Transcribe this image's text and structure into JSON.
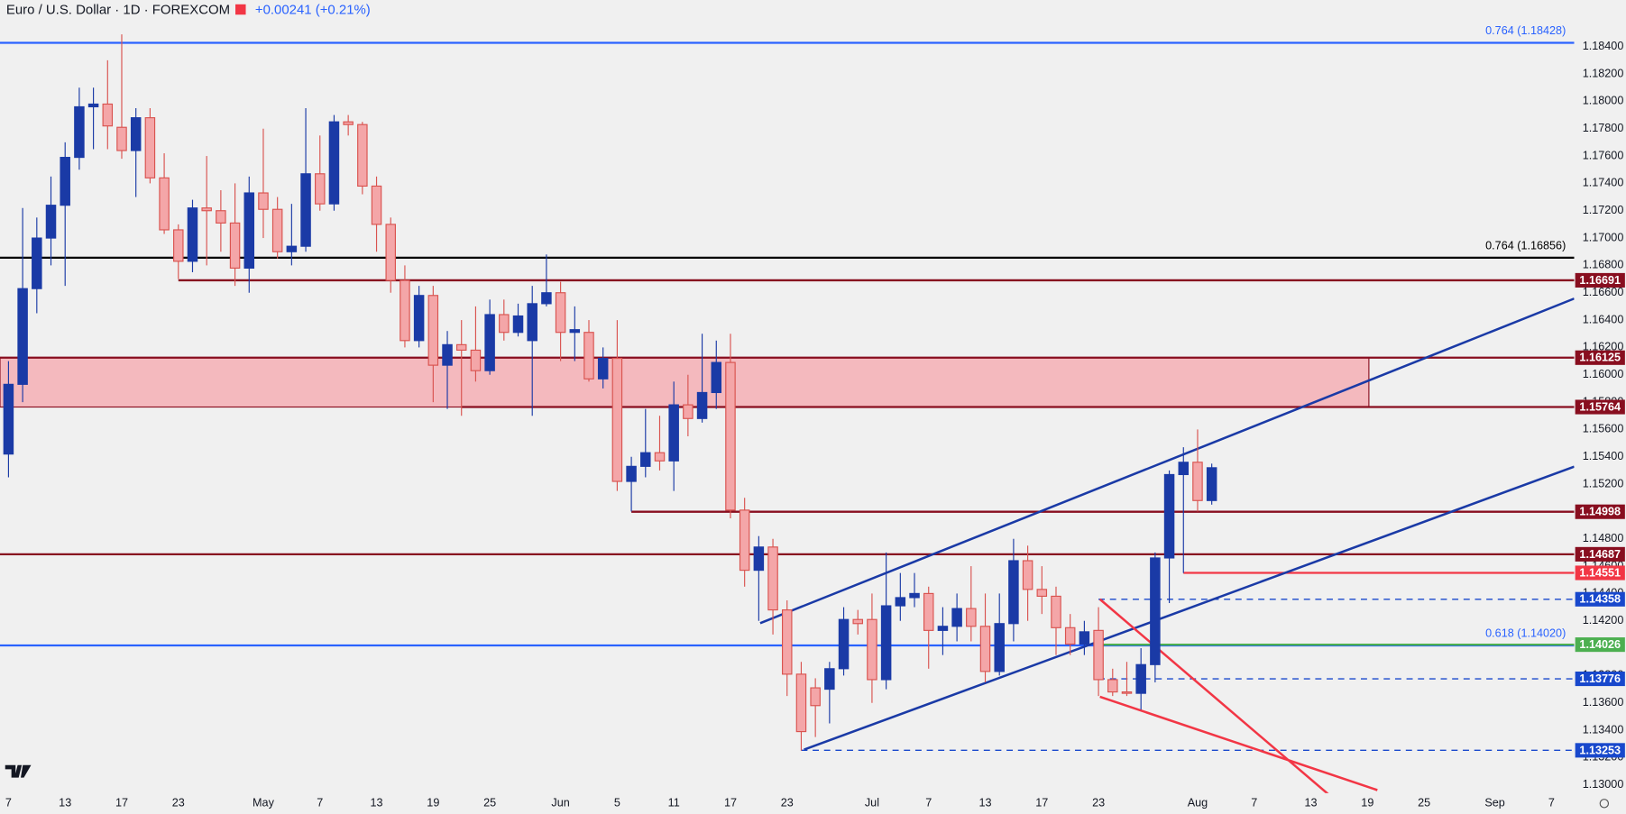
{
  "header": {
    "symbol": "Euro / U.S. Dollar · 1D · FOREXCOM",
    "change": "+0.00241 (+0.21%)"
  },
  "chart_data": {
    "type": "candlestick",
    "up_color": "#1a3aa6",
    "down_color": "#f4a6a8",
    "down_border": "#d9534f",
    "ylim": [
      1.1294,
      1.1874
    ],
    "xlim": [
      -0.6,
      110.6
    ],
    "yticks": [
      {
        "value": 1.184,
        "label": "1.18400"
      },
      {
        "value": 1.182,
        "label": "1.18200"
      },
      {
        "value": 1.18,
        "label": "1.18000"
      },
      {
        "value": 1.178,
        "label": "1.17800"
      },
      {
        "value": 1.176,
        "label": "1.17600"
      },
      {
        "value": 1.174,
        "label": "1.17400"
      },
      {
        "value": 1.172,
        "label": "1.17200"
      },
      {
        "value": 1.17,
        "label": "1.17000"
      },
      {
        "value": 1.168,
        "label": "1.16800"
      },
      {
        "value": 1.166,
        "label": "1.16600"
      },
      {
        "value": 1.164,
        "label": "1.16400"
      },
      {
        "value": 1.162,
        "label": "1.16200"
      },
      {
        "value": 1.16,
        "label": "1.16000"
      },
      {
        "value": 1.158,
        "label": "1.15800"
      },
      {
        "value": 1.156,
        "label": "1.15600"
      },
      {
        "value": 1.154,
        "label": "1.15400"
      },
      {
        "value": 1.152,
        "label": "1.15200"
      },
      {
        "value": 1.15,
        "label": "1.15000"
      },
      {
        "value": 1.148,
        "label": "1.14800"
      },
      {
        "value": 1.146,
        "label": "1.14600"
      },
      {
        "value": 1.144,
        "label": "1.14400"
      },
      {
        "value": 1.142,
        "label": "1.14200"
      },
      {
        "value": 1.14,
        "label": "1.14000"
      },
      {
        "value": 1.138,
        "label": "1.13800"
      },
      {
        "value": 1.136,
        "label": "1.13600"
      },
      {
        "value": 1.134,
        "label": "1.13400"
      },
      {
        "value": 1.132,
        "label": "1.13200"
      },
      {
        "value": 1.13,
        "label": "1.13000"
      }
    ],
    "xticks": [
      {
        "value": 0,
        "label": "7"
      },
      {
        "value": 4,
        "label": "13"
      },
      {
        "value": 8,
        "label": "17"
      },
      {
        "value": 12,
        "label": "23"
      },
      {
        "value": 18,
        "label": "May"
      },
      {
        "value": 22,
        "label": "7"
      },
      {
        "value": 26,
        "label": "13"
      },
      {
        "value": 30,
        "label": "19"
      },
      {
        "value": 34,
        "label": "25"
      },
      {
        "value": 39,
        "label": "Jun"
      },
      {
        "value": 43,
        "label": "5"
      },
      {
        "value": 47,
        "label": "11"
      },
      {
        "value": 51,
        "label": "17"
      },
      {
        "value": 55,
        "label": "23"
      },
      {
        "value": 61,
        "label": "Jul"
      },
      {
        "value": 65,
        "label": "7"
      },
      {
        "value": 69,
        "label": "13"
      },
      {
        "value": 73,
        "label": "17"
      },
      {
        "value": 77,
        "label": "23"
      },
      {
        "value": 84,
        "label": "Aug"
      },
      {
        "value": 88,
        "label": "7"
      },
      {
        "value": 92,
        "label": "13"
      },
      {
        "value": 96,
        "label": "19"
      },
      {
        "value": 100,
        "label": "25"
      },
      {
        "value": 105,
        "label": "Sep"
      },
      {
        "value": 109,
        "label": "7"
      }
    ],
    "candles": [
      {
        "o": 1.1542,
        "h": 1.161,
        "l": 1.1525,
        "c": 1.1593
      },
      {
        "o": 1.1593,
        "h": 1.1722,
        "l": 1.158,
        "c": 1.1663
      },
      {
        "o": 1.1663,
        "h": 1.1715,
        "l": 1.1645,
        "c": 1.17
      },
      {
        "o": 1.17,
        "h": 1.1745,
        "l": 1.168,
        "c": 1.1724
      },
      {
        "o": 1.1724,
        "h": 1.177,
        "l": 1.1665,
        "c": 1.1759
      },
      {
        "o": 1.1759,
        "h": 1.181,
        "l": 1.175,
        "c": 1.1796
      },
      {
        "o": 1.1796,
        "h": 1.181,
        "l": 1.1765,
        "c": 1.1798
      },
      {
        "o": 1.1798,
        "h": 1.183,
        "l": 1.1765,
        "c": 1.1782
      },
      {
        "o": 1.1781,
        "h": 1.1849,
        "l": 1.1758,
        "c": 1.1764
      },
      {
        "o": 1.1764,
        "h": 1.1795,
        "l": 1.173,
        "c": 1.1788
      },
      {
        "o": 1.1788,
        "h": 1.1795,
        "l": 1.174,
        "c": 1.1744
      },
      {
        "o": 1.1744,
        "h": 1.1762,
        "l": 1.1703,
        "c": 1.1706
      },
      {
        "o": 1.1706,
        "h": 1.171,
        "l": 1.167,
        "c": 1.1683
      },
      {
        "o": 1.1683,
        "h": 1.1728,
        "l": 1.1675,
        "c": 1.1722
      },
      {
        "o": 1.1722,
        "h": 1.176,
        "l": 1.168,
        "c": 1.172
      },
      {
        "o": 1.172,
        "h": 1.1735,
        "l": 1.169,
        "c": 1.1711
      },
      {
        "o": 1.1711,
        "h": 1.174,
        "l": 1.1665,
        "c": 1.1678
      },
      {
        "o": 1.1678,
        "h": 1.1745,
        "l": 1.166,
        "c": 1.1733
      },
      {
        "o": 1.1733,
        "h": 1.178,
        "l": 1.17,
        "c": 1.1721
      },
      {
        "o": 1.1721,
        "h": 1.173,
        "l": 1.1685,
        "c": 1.169
      },
      {
        "o": 1.169,
        "h": 1.1725,
        "l": 1.168,
        "c": 1.1694
      },
      {
        "o": 1.1694,
        "h": 1.1795,
        "l": 1.169,
        "c": 1.1747
      },
      {
        "o": 1.1747,
        "h": 1.1775,
        "l": 1.172,
        "c": 1.1725
      },
      {
        "o": 1.1725,
        "h": 1.179,
        "l": 1.172,
        "c": 1.1785
      },
      {
        "o": 1.1785,
        "h": 1.179,
        "l": 1.1775,
        "c": 1.1783
      },
      {
        "o": 1.1783,
        "h": 1.1785,
        "l": 1.1732,
        "c": 1.1738
      },
      {
        "o": 1.1738,
        "h": 1.1745,
        "l": 1.169,
        "c": 1.171
      },
      {
        "o": 1.171,
        "h": 1.1715,
        "l": 1.166,
        "c": 1.1669
      },
      {
        "o": 1.1669,
        "h": 1.168,
        "l": 1.162,
        "c": 1.1625
      },
      {
        "o": 1.1625,
        "h": 1.1665,
        "l": 1.162,
        "c": 1.1658
      },
      {
        "o": 1.1658,
        "h": 1.1665,
        "l": 1.158,
        "c": 1.1607
      },
      {
        "o": 1.1607,
        "h": 1.1632,
        "l": 1.1575,
        "c": 1.1622
      },
      {
        "o": 1.1622,
        "h": 1.164,
        "l": 1.157,
        "c": 1.1618
      },
      {
        "o": 1.1618,
        "h": 1.165,
        "l": 1.1595,
        "c": 1.1603
      },
      {
        "o": 1.1603,
        "h": 1.1655,
        "l": 1.16,
        "c": 1.1644
      },
      {
        "o": 1.1644,
        "h": 1.1655,
        "l": 1.1625,
        "c": 1.1631
      },
      {
        "o": 1.1631,
        "h": 1.1652,
        "l": 1.1628,
        "c": 1.1643
      },
      {
        "o": 1.1625,
        "h": 1.1665,
        "l": 1.157,
        "c": 1.1652
      },
      {
        "o": 1.1652,
        "h": 1.1688,
        "l": 1.165,
        "c": 1.166
      },
      {
        "o": 1.166,
        "h": 1.1668,
        "l": 1.161,
        "c": 1.1631
      },
      {
        "o": 1.1631,
        "h": 1.165,
        "l": 1.161,
        "c": 1.1633
      },
      {
        "o": 1.1631,
        "h": 1.164,
        "l": 1.1595,
        "c": 1.1597
      },
      {
        "o": 1.1597,
        "h": 1.162,
        "l": 1.159,
        "c": 1.1612
      },
      {
        "o": 1.1612,
        "h": 1.164,
        "l": 1.1515,
        "c": 1.1522
      },
      {
        "o": 1.1522,
        "h": 1.154,
        "l": 1.15,
        "c": 1.1533
      },
      {
        "o": 1.1533,
        "h": 1.1575,
        "l": 1.1525,
        "c": 1.1543
      },
      {
        "o": 1.1543,
        "h": 1.157,
        "l": 1.153,
        "c": 1.1537
      },
      {
        "o": 1.1537,
        "h": 1.1595,
        "l": 1.1515,
        "c": 1.1578
      },
      {
        "o": 1.1578,
        "h": 1.16,
        "l": 1.1555,
        "c": 1.1568
      },
      {
        "o": 1.1568,
        "h": 1.163,
        "l": 1.1565,
        "c": 1.1587
      },
      {
        "o": 1.1587,
        "h": 1.1625,
        "l": 1.1575,
        "c": 1.1609
      },
      {
        "o": 1.1609,
        "h": 1.163,
        "l": 1.1495,
        "c": 1.1501
      },
      {
        "o": 1.1501,
        "h": 1.151,
        "l": 1.1445,
        "c": 1.1457
      },
      {
        "o": 1.1457,
        "h": 1.1482,
        "l": 1.142,
        "c": 1.1474
      },
      {
        "o": 1.1474,
        "h": 1.148,
        "l": 1.141,
        "c": 1.1428
      },
      {
        "o": 1.1428,
        "h": 1.1435,
        "l": 1.1365,
        "c": 1.1381
      },
      {
        "o": 1.1381,
        "h": 1.139,
        "l": 1.1325,
        "c": 1.1339
      },
      {
        "o": 1.1371,
        "h": 1.1378,
        "l": 1.1335,
        "c": 1.1358
      },
      {
        "o": 1.137,
        "h": 1.139,
        "l": 1.1345,
        "c": 1.1385
      },
      {
        "o": 1.1385,
        "h": 1.143,
        "l": 1.138,
        "c": 1.1421
      },
      {
        "o": 1.1421,
        "h": 1.1428,
        "l": 1.141,
        "c": 1.1418
      },
      {
        "o": 1.1421,
        "h": 1.144,
        "l": 1.136,
        "c": 1.1377
      },
      {
        "o": 1.1377,
        "h": 1.147,
        "l": 1.137,
        "c": 1.1431
      },
      {
        "o": 1.1431,
        "h": 1.1455,
        "l": 1.142,
        "c": 1.1437
      },
      {
        "o": 1.1437,
        "h": 1.1455,
        "l": 1.143,
        "c": 1.144
      },
      {
        "o": 1.144,
        "h": 1.1445,
        "l": 1.1385,
        "c": 1.1413
      },
      {
        "o": 1.1413,
        "h": 1.143,
        "l": 1.1395,
        "c": 1.1416
      },
      {
        "o": 1.1416,
        "h": 1.144,
        "l": 1.1405,
        "c": 1.1429
      },
      {
        "o": 1.1429,
        "h": 1.146,
        "l": 1.1405,
        "c": 1.1416
      },
      {
        "o": 1.1416,
        "h": 1.144,
        "l": 1.1375,
        "c": 1.1383
      },
      {
        "o": 1.1383,
        "h": 1.144,
        "l": 1.138,
        "c": 1.1418
      },
      {
        "o": 1.1418,
        "h": 1.148,
        "l": 1.1405,
        "c": 1.1464
      },
      {
        "o": 1.1464,
        "h": 1.1475,
        "l": 1.142,
        "c": 1.1443
      },
      {
        "o": 1.1443,
        "h": 1.146,
        "l": 1.1425,
        "c": 1.1438
      },
      {
        "o": 1.1438,
        "h": 1.1445,
        "l": 1.1395,
        "c": 1.1415
      },
      {
        "o": 1.1415,
        "h": 1.1425,
        "l": 1.1395,
        "c": 1.1403
      },
      {
        "o": 1.1403,
        "h": 1.142,
        "l": 1.1395,
        "c": 1.1412
      },
      {
        "o": 1.1413,
        "h": 1.143,
        "l": 1.1365,
        "c": 1.1377
      },
      {
        "o": 1.1377,
        "h": 1.1385,
        "l": 1.1365,
        "c": 1.1368
      },
      {
        "o": 1.1368,
        "h": 1.139,
        "l": 1.1365,
        "c": 1.1367
      },
      {
        "o": 1.1367,
        "h": 1.14,
        "l": 1.1355,
        "c": 1.1388
      },
      {
        "o": 1.1388,
        "h": 1.147,
        "l": 1.1375,
        "c": 1.1466
      },
      {
        "o": 1.1466,
        "h": 1.153,
        "l": 1.1433,
        "c": 1.1527
      },
      {
        "o": 1.1527,
        "h": 1.1547,
        "l": 1.1455,
        "c": 1.1536
      },
      {
        "o": 1.1536,
        "h": 1.156,
        "l": 1.15,
        "c": 1.1508
      },
      {
        "o": 1.1508,
        "h": 1.1535,
        "l": 1.1505,
        "c": 1.1532
      }
    ],
    "zone": {
      "top": 1.16125,
      "bottom": 1.15764,
      "end": 96.1,
      "color": "#f4b3b8"
    },
    "fib_lines": [
      {
        "price": 1.18428,
        "label": "0.764 (1.18428)",
        "color": "#2962ff"
      },
      {
        "price": 1.16856,
        "label": "0.764 (1.16856)",
        "color": "#000000"
      },
      {
        "price": 1.1402,
        "label": "0.618 (1.14020)",
        "color": "#2962ff"
      }
    ],
    "levels": [
      {
        "price": 1.16691,
        "start": 12,
        "color": "#880e1f",
        "dashed": false
      },
      {
        "price": 1.16125,
        "start": -0.6,
        "color": "#880e1f",
        "dashed": false
      },
      {
        "price": 1.15764,
        "start": 32,
        "color": "#880e1f",
        "dashed": false
      },
      {
        "price": 1.14998,
        "start": 44,
        "color": "#880e1f",
        "dashed": false
      },
      {
        "price": 1.14687,
        "start": -0.6,
        "color": "#880e1f",
        "dashed": false
      },
      {
        "price": 1.14551,
        "start": 83,
        "color": "#f23645",
        "dashed": false
      },
      {
        "price": 1.14358,
        "start": 77,
        "color": "#1848cc",
        "dashed": true
      },
      {
        "price": 1.14026,
        "start": 77,
        "color": "#4caf50",
        "dashed": false
      },
      {
        "price": 1.13776,
        "start": 77,
        "color": "#1848cc",
        "dashed": true
      },
      {
        "price": 1.13253,
        "start": 56,
        "color": "#1848cc",
        "dashed": true
      }
    ],
    "trendlines": [
      {
        "points": [
          [
            53.1,
            1.14183
          ],
          [
            110.6,
            1.16557
          ]
        ],
        "color": "#1a3aa6"
      },
      {
        "points": [
          [
            56.2,
            1.13258
          ],
          [
            110.6,
            1.15328
          ]
        ],
        "color": "#1a3aa6"
      },
      {
        "points": [
          [
            77.1,
            1.14358
          ],
          [
            93.4,
            1.12917
          ]
        ],
        "color": "#f23645"
      },
      {
        "points": [
          [
            77.1,
            1.13645
          ],
          [
            96.7,
            1.12962
          ]
        ],
        "color": "#f23645"
      }
    ]
  }
}
